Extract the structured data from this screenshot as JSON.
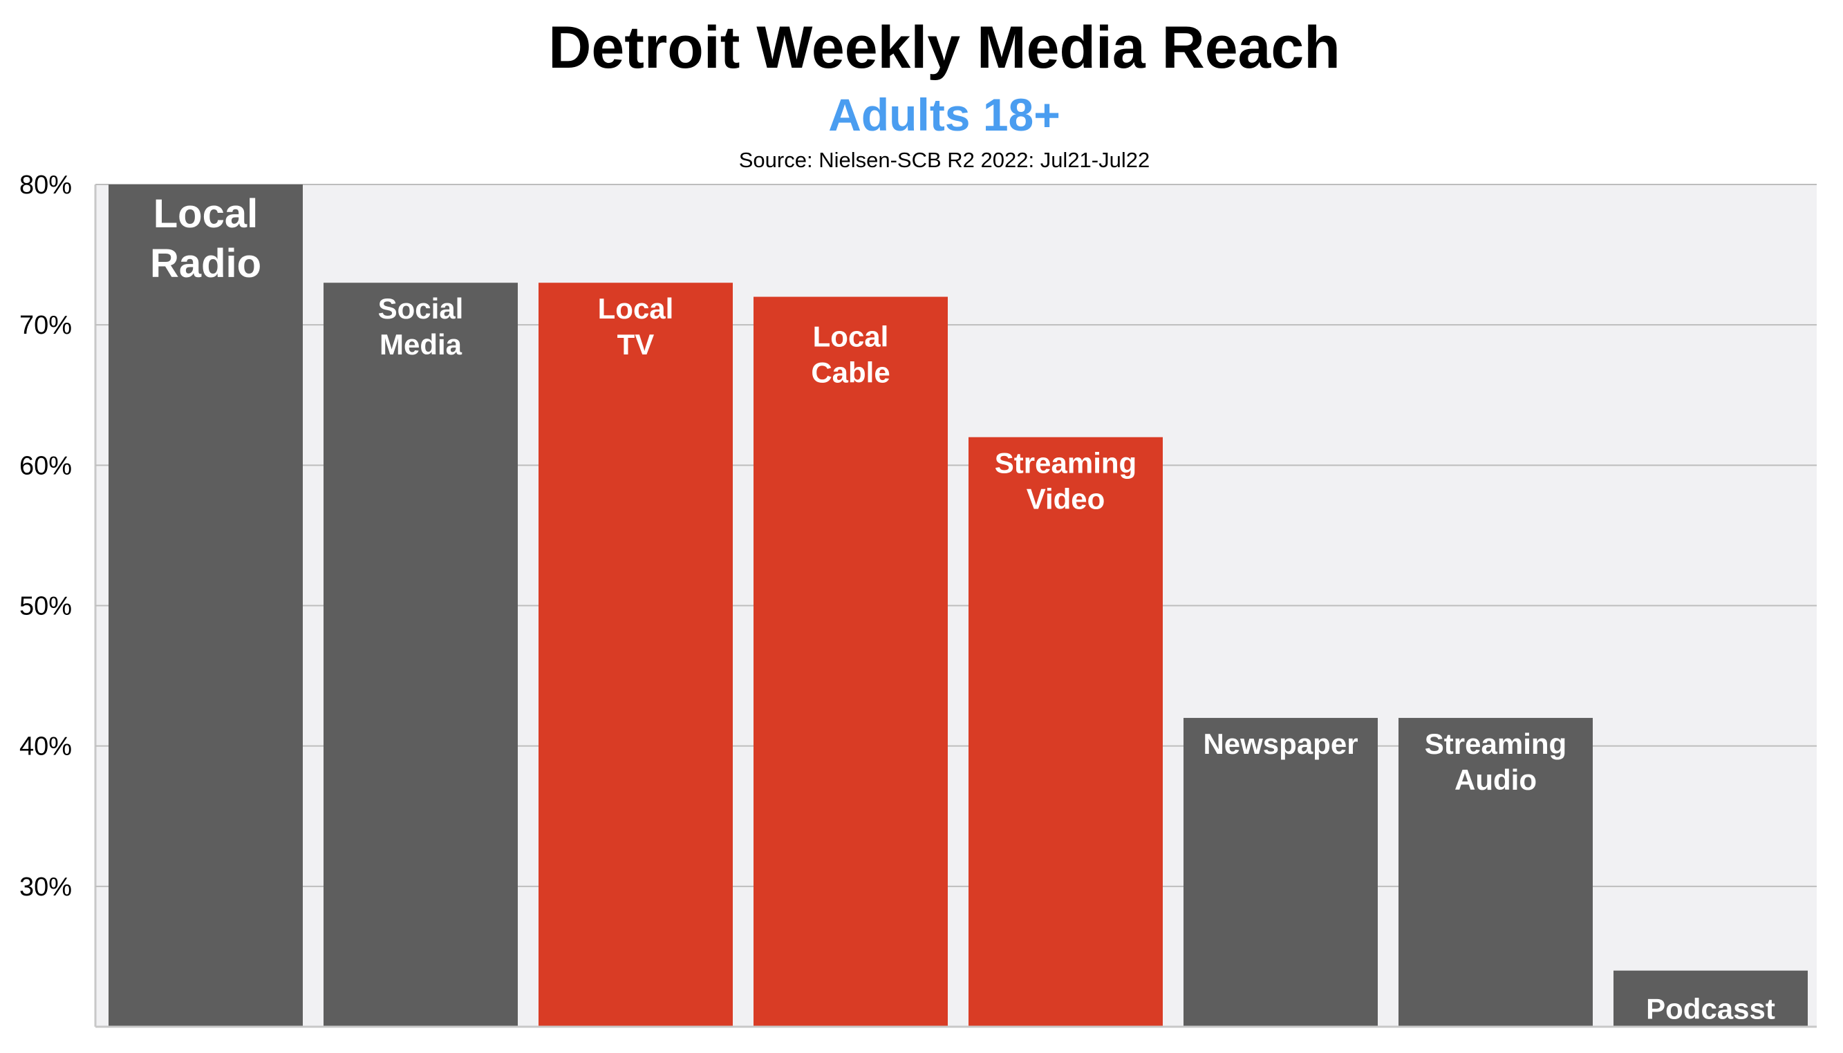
{
  "chart_data": {
    "type": "bar",
    "title": "Detroit Weekly Media Reach",
    "subtitle": "Adults 18+",
    "source": "Source: Nielsen-SCB R2 2022: Jul21-Jul22",
    "categories": [
      [
        "Local",
        "Radio"
      ],
      [
        "Social",
        "Media"
      ],
      [
        "Local",
        "TV"
      ],
      [
        "Local",
        "Cable"
      ],
      [
        "Streaming",
        "Video"
      ],
      [
        "Newspaper"
      ],
      [
        "Streaming",
        "Audio"
      ],
      [
        "Podcasst"
      ]
    ],
    "values": [
      80,
      73,
      73,
      72,
      62,
      42,
      42,
      24
    ],
    "bar_colors": [
      "#5e5e5e",
      "#5e5e5e",
      "#d93c25",
      "#d93c25",
      "#d93c25",
      "#5e5e5e",
      "#5e5e5e",
      "#5e5e5e"
    ],
    "yticks": [
      "30%",
      "40%",
      "50%",
      "60%",
      "70%",
      "80%"
    ],
    "ytick_values": [
      30,
      40,
      50,
      60,
      70,
      80
    ],
    "ylim": [
      20,
      80
    ],
    "xlabel": "",
    "ylabel": "",
    "grid": true,
    "legend": "none",
    "colors": {
      "subtitle": "#4a9df0",
      "plot_background": "#f1f1f3",
      "grid": "#bdbdbd"
    }
  }
}
